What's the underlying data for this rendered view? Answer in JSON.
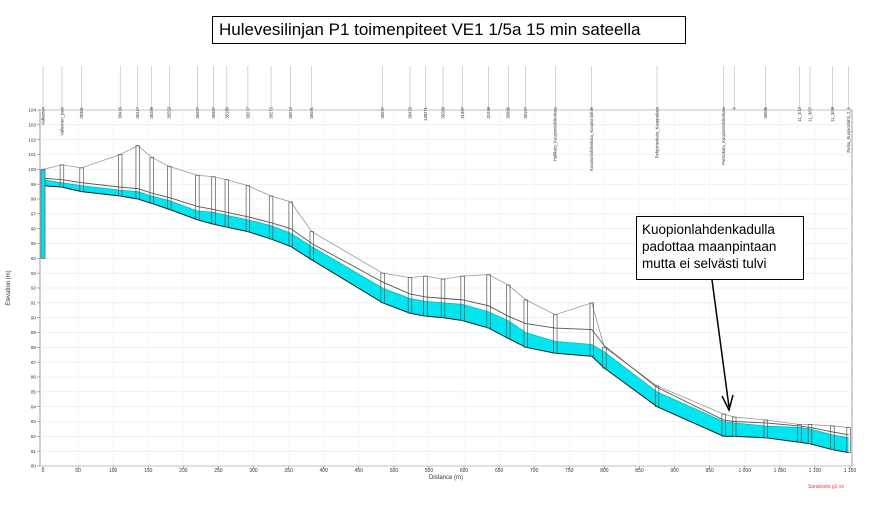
{
  "title": "Hulevesilinjan P1 toimenpiteet VE1 1/5a 15 min sateella",
  "callout": "Kuopionlahdenkadulla\npadottaa maanpintaan\nmutta ei selvästi tulvi",
  "footer_stamp": "Sarakosto.g1-xx",
  "colors": {
    "water": "#00e5f0",
    "structure": "#555555",
    "ground": "#999999",
    "arrow": "#000000",
    "stamp": "#e04040"
  },
  "chart_data": {
    "type": "profile",
    "xlabel": "Distance (m)",
    "ylabel": "Elevation (m)",
    "xlim": [
      0,
      1150
    ],
    "ylim": [
      80,
      104
    ],
    "x_ticks": [
      0,
      50,
      100,
      150,
      200,
      250,
      300,
      350,
      400,
      450,
      500,
      550,
      600,
      650,
      700,
      750,
      800,
      850,
      900,
      950,
      1000,
      1050,
      1100,
      1150
    ],
    "x_tick_labels": [
      "0",
      "50",
      "100",
      "150",
      "200",
      "250",
      "300",
      "350",
      "400",
      "450",
      "500",
      "550",
      "600",
      "650",
      "700",
      "750",
      "800",
      "850",
      "900",
      "950",
      "1 000",
      "1 050",
      "1 100",
      "1 150"
    ],
    "y_ticks": [
      80,
      81,
      82,
      83,
      84,
      85,
      86,
      87,
      88,
      89,
      90,
      91,
      92,
      93,
      94,
      95,
      96,
      97,
      98,
      99,
      100,
      101,
      102,
      103,
      104
    ],
    "node_labels": [
      {
        "x": 0,
        "label": "Valkeinen"
      },
      {
        "x": 27,
        "label": "Valkeinen_pato"
      },
      {
        "x": 55,
        "label": "38381"
      },
      {
        "x": 110,
        "label": "38416"
      },
      {
        "x": 135,
        "label": "38417"
      },
      {
        "x": 155,
        "label": "38289"
      },
      {
        "x": 180,
        "label": "38253"
      },
      {
        "x": 220,
        "label": "38457"
      },
      {
        "x": 243,
        "label": "38387"
      },
      {
        "x": 262,
        "label": "38180"
      },
      {
        "x": 292,
        "label": "38277"
      },
      {
        "x": 325,
        "label": "38272"
      },
      {
        "x": 353,
        "label": "38212"
      },
      {
        "x": 383,
        "label": "38491"
      },
      {
        "x": 484,
        "label": "38037"
      },
      {
        "x": 523,
        "label": "38423"
      },
      {
        "x": 545,
        "label": "138271"
      },
      {
        "x": 570,
        "label": "38289"
      },
      {
        "x": 598,
        "label": "31997"
      },
      {
        "x": 635,
        "label": "31038"
      },
      {
        "x": 663,
        "label": "38685"
      },
      {
        "x": 688,
        "label": "38197"
      },
      {
        "x": 730,
        "label": "Hallikatu_Kuopionlahdenkatu"
      },
      {
        "x": 782,
        "label": "Kuopionlahdenkatu_Kuopionlahde"
      },
      {
        "x": 875,
        "label": "Pohjoinenkatu_Kauppakatu"
      },
      {
        "x": 970,
        "label": "Puistokatu_Kuopionlahdenkatu"
      },
      {
        "x": 985,
        "label": "6"
      },
      {
        "x": 1030,
        "label": "38085"
      },
      {
        "x": 1078,
        "label": "11_2/12"
      },
      {
        "x": 1093,
        "label": "11_3/07"
      },
      {
        "x": 1125,
        "label": "11_3/08"
      },
      {
        "x": 1148,
        "label": "Purku_Kuopionlahti_2_1"
      }
    ],
    "ground_level": [
      [
        0,
        100.0
      ],
      [
        27,
        100.3
      ],
      [
        55,
        100.1
      ],
      [
        110,
        101.0
      ],
      [
        135,
        101.6
      ],
      [
        155,
        100.8
      ],
      [
        180,
        100.2
      ],
      [
        220,
        99.6
      ],
      [
        243,
        99.5
      ],
      [
        262,
        99.3
      ],
      [
        292,
        98.9
      ],
      [
        325,
        98.2
      ],
      [
        353,
        97.8
      ],
      [
        383,
        95.8
      ],
      [
        484,
        93.0
      ],
      [
        523,
        92.7
      ],
      [
        545,
        92.8
      ],
      [
        570,
        92.6
      ],
      [
        598,
        92.8
      ],
      [
        635,
        92.9
      ],
      [
        663,
        92.2
      ],
      [
        688,
        91.2
      ],
      [
        730,
        90.2
      ],
      [
        782,
        91.0
      ],
      [
        800,
        88.0
      ],
      [
        875,
        85.4
      ],
      [
        970,
        83.5
      ],
      [
        985,
        83.3
      ],
      [
        1030,
        83.1
      ],
      [
        1078,
        82.8
      ],
      [
        1093,
        82.8
      ],
      [
        1125,
        82.7
      ],
      [
        1148,
        82.6
      ]
    ],
    "invert_level": [
      [
        0,
        98.9
      ],
      [
        27,
        98.8
      ],
      [
        55,
        98.5
      ],
      [
        110,
        98.2
      ],
      [
        135,
        98.0
      ],
      [
        155,
        97.7
      ],
      [
        180,
        97.3
      ],
      [
        220,
        96.6
      ],
      [
        243,
        96.3
      ],
      [
        262,
        96.1
      ],
      [
        292,
        95.8
      ],
      [
        325,
        95.3
      ],
      [
        353,
        94.8
      ],
      [
        383,
        93.9
      ],
      [
        484,
        91.0
      ],
      [
        523,
        90.3
      ],
      [
        545,
        90.1
      ],
      [
        570,
        90.0
      ],
      [
        598,
        89.8
      ],
      [
        635,
        89.3
      ],
      [
        663,
        88.6
      ],
      [
        688,
        88.0
      ],
      [
        730,
        87.6
      ],
      [
        782,
        87.4
      ],
      [
        800,
        86.6
      ],
      [
        875,
        84.0
      ],
      [
        970,
        82.0
      ],
      [
        985,
        82.0
      ],
      [
        1030,
        81.9
      ],
      [
        1078,
        81.6
      ],
      [
        1093,
        81.5
      ],
      [
        1125,
        81.1
      ],
      [
        1148,
        80.9
      ]
    ],
    "pipe_crown": [
      [
        0,
        99.4
      ],
      [
        27,
        99.3
      ],
      [
        55,
        99.1
      ],
      [
        110,
        98.8
      ],
      [
        135,
        98.7
      ],
      [
        155,
        98.4
      ],
      [
        180,
        98.1
      ],
      [
        220,
        97.5
      ],
      [
        243,
        97.3
      ],
      [
        262,
        97.1
      ],
      [
        292,
        96.8
      ],
      [
        325,
        96.4
      ],
      [
        353,
        96.0
      ],
      [
        383,
        95.0
      ],
      [
        484,
        92.4
      ],
      [
        523,
        91.6
      ],
      [
        545,
        91.4
      ],
      [
        570,
        91.3
      ],
      [
        598,
        91.2
      ],
      [
        635,
        90.8
      ],
      [
        663,
        90.1
      ],
      [
        688,
        89.6
      ],
      [
        730,
        89.3
      ],
      [
        782,
        89.2
      ],
      [
        800,
        88.1
      ],
      [
        875,
        85.3
      ],
      [
        970,
        83.1
      ],
      [
        985,
        83.0
      ],
      [
        1030,
        82.9
      ],
      [
        1078,
        82.7
      ],
      [
        1093,
        82.6
      ],
      [
        1125,
        82.3
      ],
      [
        1148,
        82.1
      ]
    ],
    "water_level": [
      [
        0,
        99.3
      ],
      [
        27,
        99.1
      ],
      [
        55,
        98.9
      ],
      [
        110,
        98.6
      ],
      [
        135,
        98.5
      ],
      [
        155,
        98.2
      ],
      [
        180,
        97.9
      ],
      [
        220,
        97.2
      ],
      [
        243,
        97.1
      ],
      [
        262,
        96.9
      ],
      [
        292,
        96.6
      ],
      [
        325,
        96.2
      ],
      [
        353,
        95.7
      ],
      [
        383,
        94.8
      ],
      [
        484,
        92.0
      ],
      [
        523,
        91.3
      ],
      [
        545,
        91.1
      ],
      [
        570,
        91.0
      ],
      [
        598,
        90.9
      ],
      [
        635,
        90.4
      ],
      [
        663,
        89.8
      ],
      [
        688,
        89.0
      ],
      [
        730,
        88.4
      ],
      [
        782,
        88.2
      ],
      [
        800,
        87.7
      ],
      [
        875,
        85.0
      ],
      [
        970,
        83.0
      ],
      [
        985,
        82.9
      ],
      [
        1030,
        82.7
      ],
      [
        1078,
        82.6
      ],
      [
        1093,
        82.5
      ],
      [
        1125,
        82.1
      ],
      [
        1148,
        81.9
      ]
    ]
  }
}
